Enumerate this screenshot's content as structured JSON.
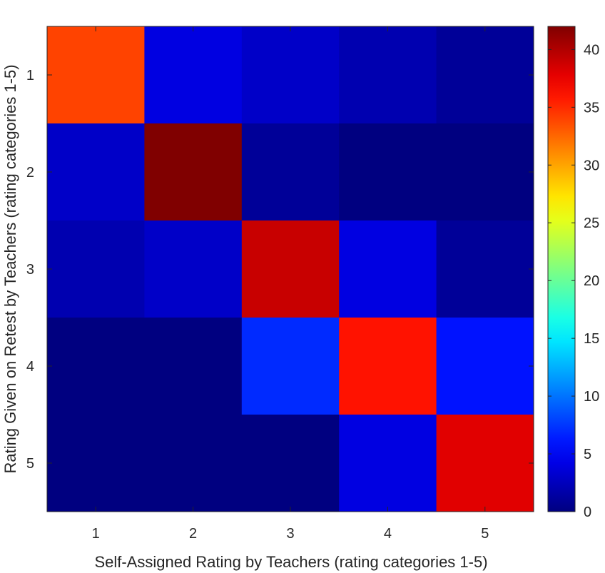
{
  "chart_data": {
    "type": "heatmap",
    "title": "",
    "xlabel": "Self-Assigned Rating by Teachers (rating categories 1-5)",
    "ylabel": "Rating Given on Retest by Teachers (rating categories 1-5)",
    "x_categories": [
      "1",
      "2",
      "3",
      "4",
      "5"
    ],
    "y_categories": [
      "1",
      "2",
      "3",
      "4",
      "5"
    ],
    "values": [
      [
        34,
        4,
        3,
        2,
        1
      ],
      [
        3,
        42,
        1,
        0,
        0
      ],
      [
        2,
        3,
        39,
        4,
        1
      ],
      [
        0,
        0,
        7,
        36,
        6
      ],
      [
        0,
        0,
        0,
        4,
        38
      ]
    ],
    "colorbar": {
      "colormap": "jet",
      "range": [
        0,
        42
      ],
      "ticks": [
        0,
        5,
        10,
        15,
        20,
        25,
        30,
        35,
        40
      ]
    },
    "grid": false,
    "legend": "colorbar-right"
  }
}
